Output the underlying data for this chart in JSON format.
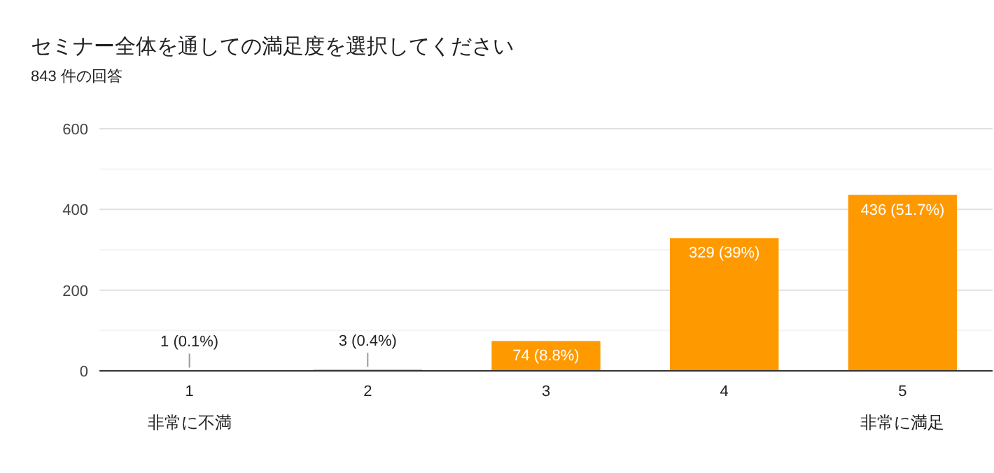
{
  "chart_data": {
    "type": "bar",
    "title": "セミナー全体を通しての満足度を選択してください",
    "subtitle": "843 件の回答",
    "categories": [
      "1",
      "2",
      "3",
      "4",
      "5"
    ],
    "values": [
      1,
      3,
      74,
      329,
      436
    ],
    "color": "#ff9900",
    "value_labels": [
      "1 (0.1%)",
      "3 (0.4%)",
      "74 (8.8%)",
      "329 (39%)",
      "436 (51.7%)"
    ],
    "ylim": [
      0,
      600
    ],
    "yticks": [
      0,
      {
        "value": 100,
        "label": null
      },
      200,
      {
        "value": 300,
        "label": null
      },
      400,
      {
        "value": 500,
        "label": null
      },
      600
    ],
    "grid": "y",
    "annotations": [
      "非常に不満",
      "非常に満足"
    ]
  }
}
